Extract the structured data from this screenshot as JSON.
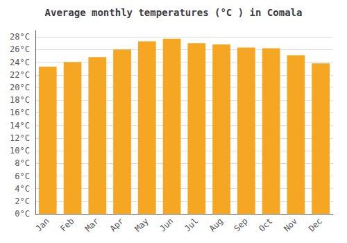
{
  "chart_data": {
    "type": "bar",
    "title": "Average monthly temperatures (°C ) in Comala",
    "categories": [
      "Jan",
      "Feb",
      "Mar",
      "Apr",
      "May",
      "Jun",
      "Jul",
      "Aug",
      "Sep",
      "Oct",
      "Nov",
      "Dec"
    ],
    "values": [
      23.3,
      24.0,
      24.8,
      26.0,
      27.3,
      27.7,
      27.0,
      26.8,
      26.3,
      26.2,
      25.1,
      23.8
    ],
    "color": "#F5A623",
    "ylim": [
      0,
      29
    ],
    "yticks": [
      {
        "value": 0,
        "label": "0°C"
      },
      {
        "value": 2,
        "label": "2°C"
      },
      {
        "value": 4,
        "label": "4°C"
      },
      {
        "value": 6,
        "label": "6°C"
      },
      {
        "value": 8,
        "label": "8°C"
      },
      {
        "value": 10,
        "label": "10°C"
      },
      {
        "value": 12,
        "label": "12°C"
      },
      {
        "value": 14,
        "label": "14°C"
      },
      {
        "value": 16,
        "label": "16°C"
      },
      {
        "value": 18,
        "label": "18°C"
      },
      {
        "value": 20,
        "label": "20°C"
      },
      {
        "value": 22,
        "label": "22°C"
      },
      {
        "value": 24,
        "label": "24°C"
      },
      {
        "value": 26,
        "label": "26°C"
      },
      {
        "value": 28,
        "label": "28°C"
      }
    ],
    "grid": true
  }
}
